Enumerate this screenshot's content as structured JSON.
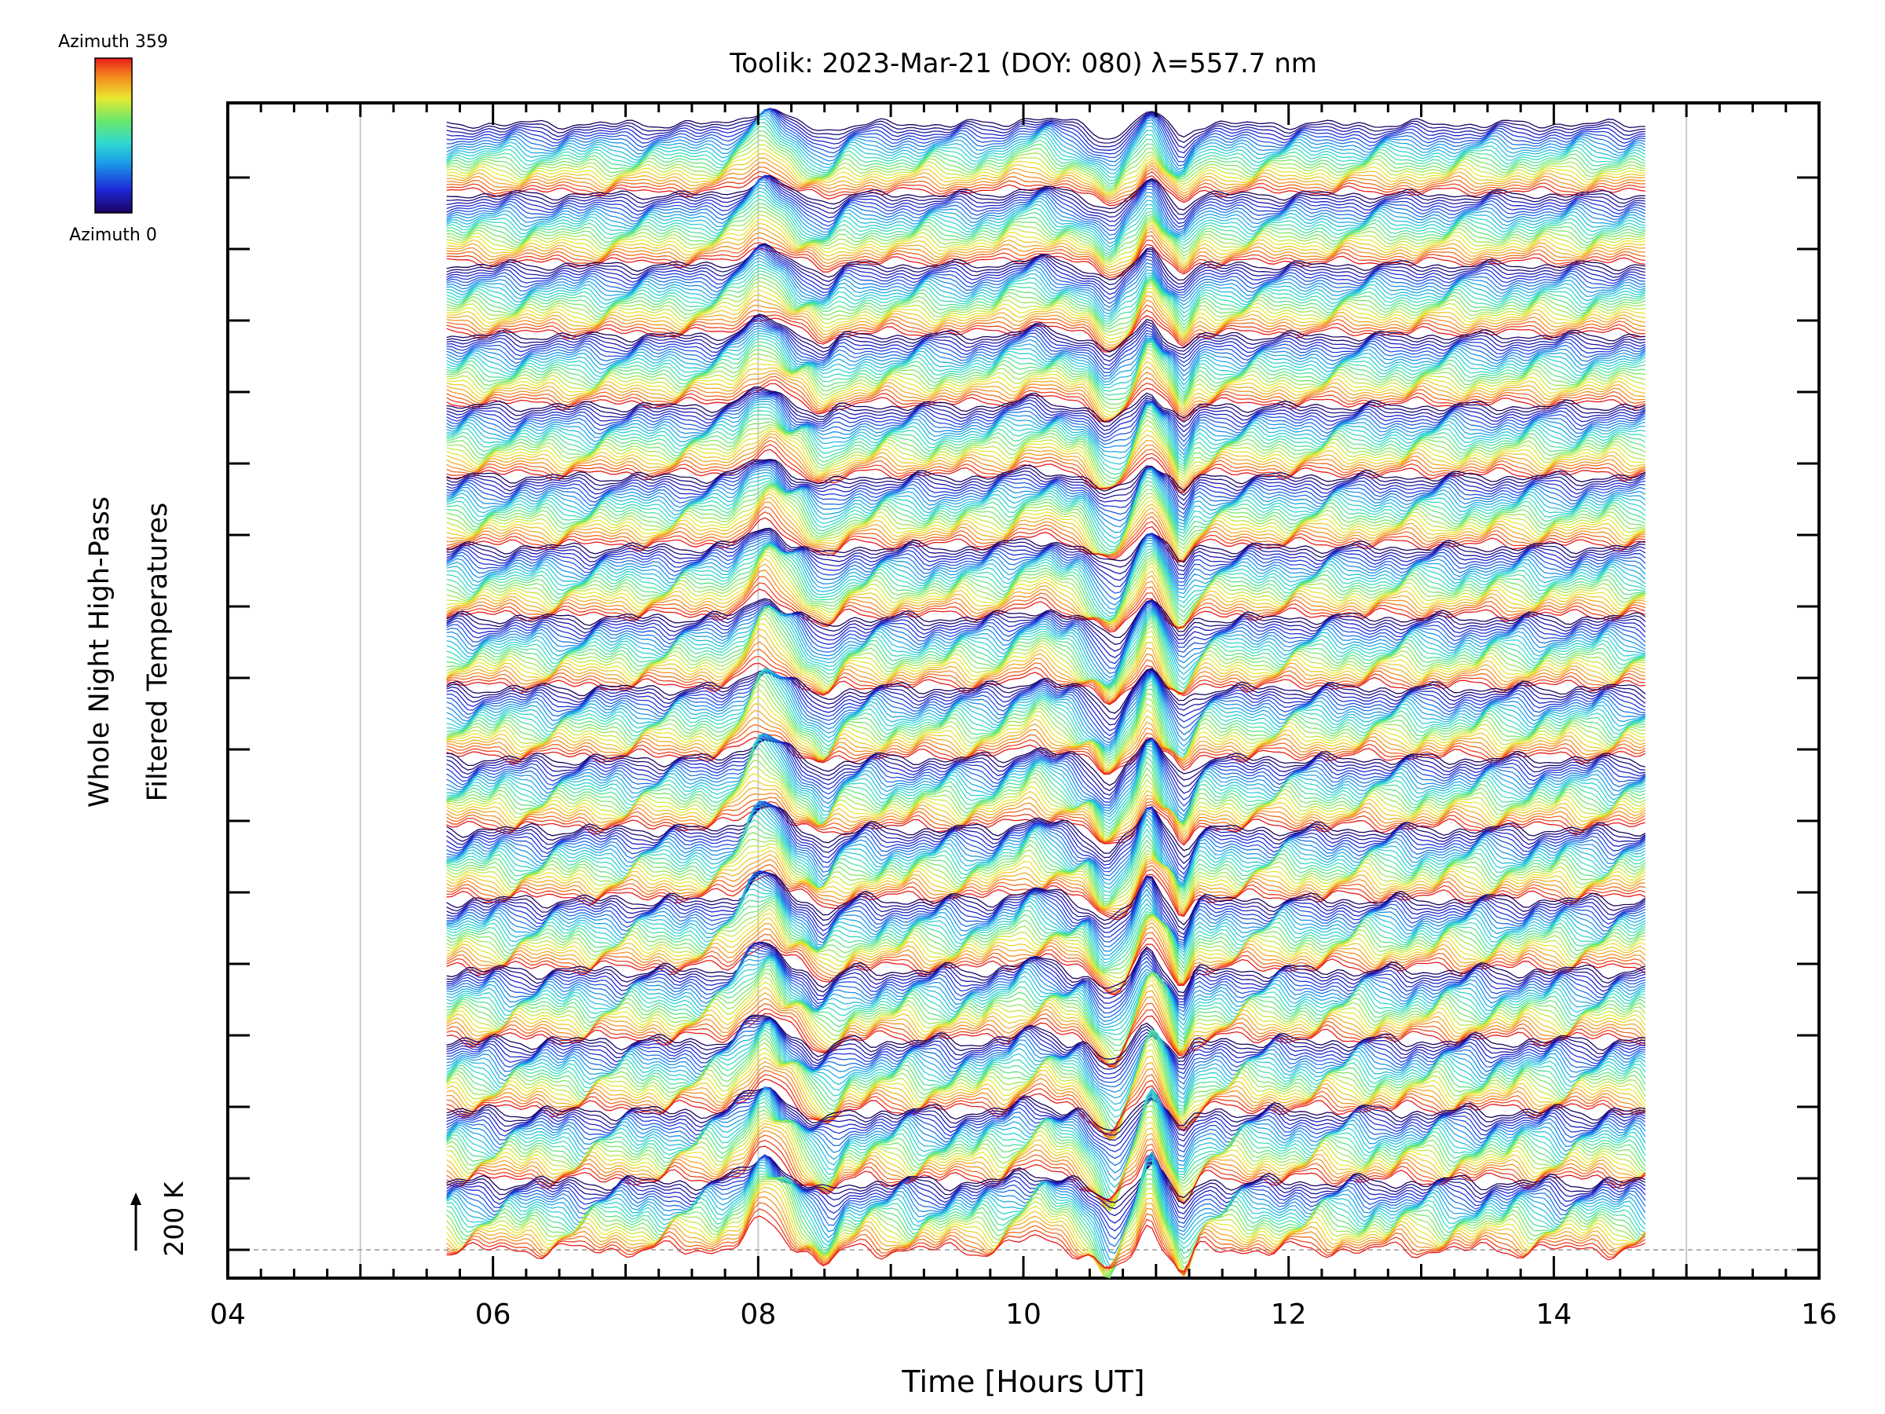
{
  "chart_data": {
    "type": "line",
    "title": "Toolik: 2023-Mar-21 (DOY: 080) λ=557.7 nm",
    "xlabel": "Time [Hours UT]",
    "ylabel_line1": "Whole Night High-Pass",
    "ylabel_line2": "Filtered Temperatures",
    "scale_bar_label": "200 K",
    "xlim": [
      4,
      16
    ],
    "x_ticks": [
      "04",
      "06",
      "08",
      "10",
      "12",
      "14",
      "16"
    ],
    "x_tick_values": [
      4,
      6,
      8,
      10,
      12,
      14,
      16
    ],
    "x_gridlines": [
      5,
      8,
      15
    ],
    "data_x_range": [
      5.65,
      14.7
    ],
    "y_major_tick_count": 16,
    "y_minor_per_major": 4,
    "scale_bar_K": 200,
    "colorbar": {
      "top_label": "Azimuth 359",
      "bottom_label": "Azimuth 0",
      "min": 0,
      "max": 359,
      "colormap": "rainbow (blue at 0, red at 359)"
    },
    "trace_groups": 16,
    "traces_per_group": 24,
    "trace_color_order_within_group": "azimuth 0 (navy) at top descending through blue, cyan, green, yellow, orange to azimuth 359 (red) at bottom",
    "feature_events": [
      {
        "time": 8.05,
        "description": "strong positive peak"
      },
      {
        "time": 8.5,
        "description": "dip"
      },
      {
        "time": 10.1,
        "description": "rise"
      },
      {
        "time": 10.65,
        "description": "deep trough"
      },
      {
        "time": 10.95,
        "description": "sharp peak"
      },
      {
        "time": 11.2,
        "description": "sharp trough"
      }
    ],
    "colors": {
      "frame": "#000000",
      "gridline": "#cccccc",
      "reference_dashed_line": "#999999"
    }
  }
}
